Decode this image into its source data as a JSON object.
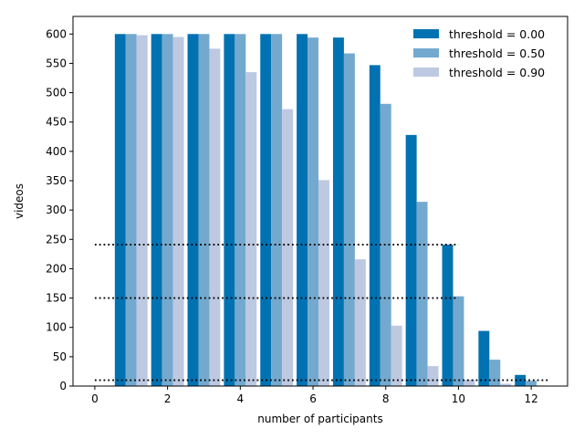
{
  "chart_data": {
    "type": "bar",
    "xlabel": "number of participants",
    "ylabel": "videos",
    "xlim": [
      -0.6,
      13.0
    ],
    "ylim": [
      0,
      630
    ],
    "x": [
      1,
      2,
      3,
      4,
      5,
      6,
      7,
      8,
      9,
      10,
      11,
      12
    ],
    "xticks": [
      "0",
      "2",
      "4",
      "6",
      "8",
      "10",
      "12"
    ],
    "xtick_values": [
      0,
      2,
      4,
      6,
      8,
      10,
      12
    ],
    "yticks": [
      "0",
      "50",
      "100",
      "150",
      "200",
      "250",
      "300",
      "350",
      "400",
      "450",
      "500",
      "550",
      "600"
    ],
    "ytick_values": [
      0,
      50,
      100,
      150,
      200,
      250,
      300,
      350,
      400,
      450,
      500,
      550,
      600
    ],
    "series": [
      {
        "name": "threshold = 0.00",
        "color": "#0072b2",
        "values": [
          600,
          600,
          600,
          600,
          600,
          600,
          594,
          547,
          428,
          241,
          94,
          19
        ]
      },
      {
        "name": "threshold = 0.50",
        "color": "#74a9cf",
        "values": [
          600,
          600,
          600,
          600,
          600,
          594,
          567,
          481,
          314,
          153,
          45,
          9
        ]
      },
      {
        "name": "threshold = 0.90",
        "color": "#bdc9e1",
        "values": [
          598,
          595,
          575,
          535,
          472,
          351,
          216,
          103,
          34,
          11,
          4,
          1
        ]
      }
    ],
    "reference_lines": [
      {
        "y": 241,
        "x_range": [
          0,
          10
        ]
      },
      {
        "y": 150,
        "x_range": [
          0,
          10
        ]
      },
      {
        "y": 10,
        "x_range": [
          0,
          12.5
        ]
      }
    ],
    "legend_placement": "top-right",
    "grid": false
  }
}
